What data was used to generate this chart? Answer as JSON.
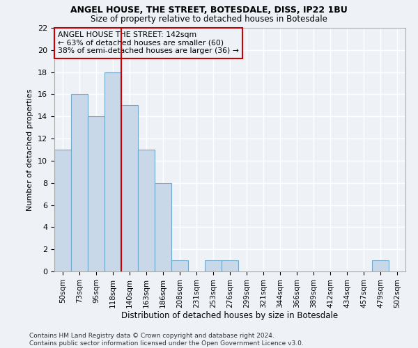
{
  "title": "ANGEL HOUSE, THE STREET, BOTESDALE, DISS, IP22 1BU",
  "subtitle": "Size of property relative to detached houses in Botesdale",
  "xlabel": "Distribution of detached houses by size in Botesdale",
  "ylabel": "Number of detached properties",
  "bin_labels": [
    "50sqm",
    "73sqm",
    "95sqm",
    "118sqm",
    "140sqm",
    "163sqm",
    "186sqm",
    "208sqm",
    "231sqm",
    "253sqm",
    "276sqm",
    "299sqm",
    "321sqm",
    "344sqm",
    "366sqm",
    "389sqm",
    "412sqm",
    "434sqm",
    "457sqm",
    "479sqm",
    "502sqm"
  ],
  "bar_values": [
    11,
    16,
    14,
    18,
    15,
    11,
    8,
    1,
    0,
    1,
    1,
    0,
    0,
    0,
    0,
    0,
    0,
    0,
    0,
    1,
    0
  ],
  "bar_color": "#c8d8e8",
  "bar_edgecolor": "#6fa8c8",
  "vline_color": "#cc0000",
  "annotation_text": "ANGEL HOUSE THE STREET: 142sqm\n← 63% of detached houses are smaller (60)\n38% of semi-detached houses are larger (36) →",
  "annotation_box_edgecolor": "#cc0000",
  "ylim": [
    0,
    22
  ],
  "yticks": [
    0,
    2,
    4,
    6,
    8,
    10,
    12,
    14,
    16,
    18,
    20,
    22
  ],
  "footnote": "Contains HM Land Registry data © Crown copyright and database right 2024.\nContains public sector information licensed under the Open Government Licence v3.0.",
  "background_color": "#eef2f7",
  "grid_color": "#ffffff"
}
